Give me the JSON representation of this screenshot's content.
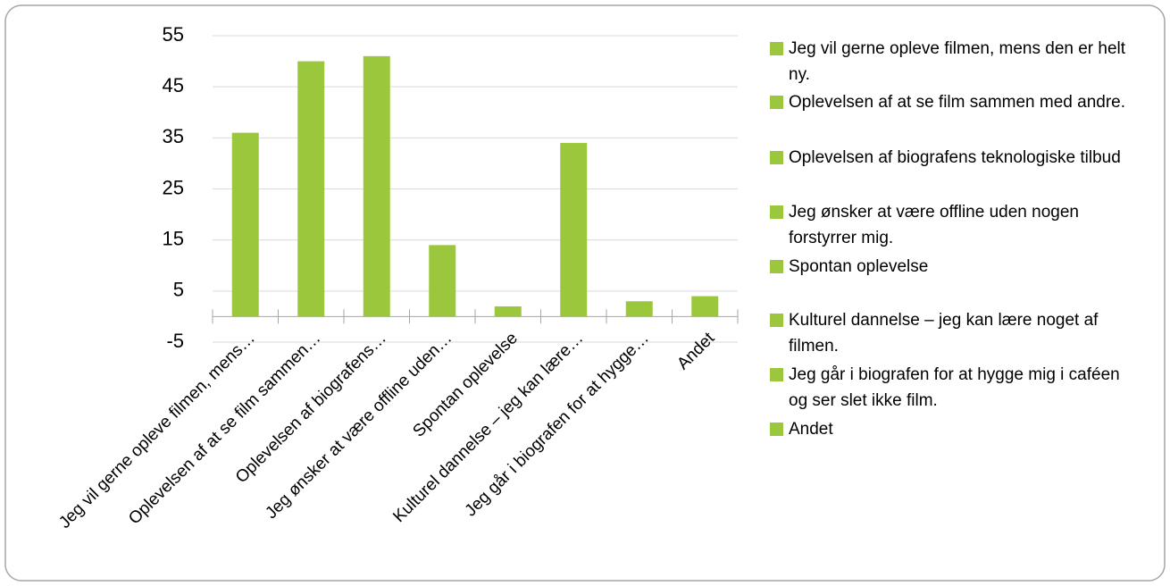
{
  "chart_data": {
    "type": "bar",
    "categories": [
      "Jeg vil gerne opleve filmen, mens…",
      "Oplevelsen af at se film sammen…",
      "Oplevelsen af biografens…",
      "Jeg ønsker at være offline uden…",
      "Spontan oplevelse",
      "Kulturel dannelse – jeg kan lære…",
      "Jeg går i biografen for at hygge…",
      "Andet"
    ],
    "legend_labels": [
      "Jeg vil gerne opleve filmen, mens den er helt ny.",
      "Oplevelsen af at se film sammen med andre.",
      "Oplevelsen af biografens teknologiske tilbud",
      "Jeg ønsker at være offline uden nogen forstyrrer mig.",
      "Spontan oplevelse",
      "Kulturel dannelse – jeg kan lære noget af filmen.",
      "Jeg går i biografen for at hygge mig i caféen og ser slet ikke film.",
      "Andet"
    ],
    "values": [
      36,
      50,
      51,
      14,
      2,
      34,
      3,
      4
    ],
    "color": "#9ac73b",
    "ylim": [
      -5,
      55
    ],
    "yticks": [
      -5,
      5,
      15,
      25,
      35,
      45,
      55
    ],
    "grid": true
  }
}
